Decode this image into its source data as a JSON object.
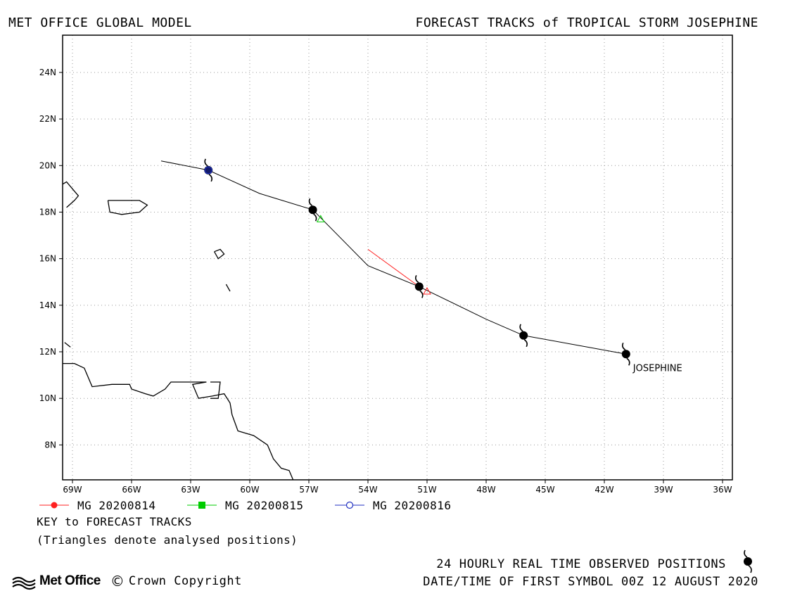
{
  "header": {
    "left_title": "MET OFFICE GLOBAL MODEL",
    "right_title": "FORECAST TRACKS of TROPICAL STORM JOSEPHINE"
  },
  "chart_data": {
    "type": "map-track",
    "x_axis": {
      "range": [
        -69.5,
        -35.5
      ],
      "ticks": [
        -69,
        -66,
        -63,
        -60,
        -57,
        -54,
        -51,
        -48,
        -45,
        -42,
        -39,
        -36
      ],
      "tick_labels": [
        "69W",
        "66W",
        "63W",
        "60W",
        "57W",
        "54W",
        "51W",
        "48W",
        "45W",
        "42W",
        "39W",
        "36W"
      ]
    },
    "y_axis": {
      "range": [
        6.5,
        25.6
      ],
      "ticks": [
        8,
        10,
        12,
        14,
        16,
        18,
        20,
        22,
        24
      ],
      "tick_labels": [
        "8N",
        "10N",
        "12N",
        "14N",
        "16N",
        "18N",
        "20N",
        "22N",
        "24N"
      ]
    },
    "grid": true,
    "storm_label": "JOSEPHINE",
    "observed_positions": [
      {
        "lon": -40.9,
        "lat": 11.9
      },
      {
        "lon": -46.1,
        "lat": 12.7
      },
      {
        "lon": -51.4,
        "lat": 14.8
      },
      {
        "lon": -56.8,
        "lat": 18.1
      },
      {
        "lon": -62.1,
        "lat": 19.8
      }
    ],
    "observed_track": [
      [
        -40.9,
        11.9
      ],
      [
        -46.1,
        12.7
      ],
      [
        -48.0,
        13.4
      ],
      [
        -51.4,
        14.8
      ],
      [
        -54.0,
        15.7
      ],
      [
        -56.8,
        18.1
      ],
      [
        -59.5,
        18.8
      ],
      [
        -62.1,
        19.8
      ],
      [
        -64.5,
        20.2
      ]
    ],
    "series": [
      {
        "name": "MG 20200814",
        "color": "#ff2020",
        "marker": "circle-filled",
        "track": [
          [
            -51.4,
            14.8
          ],
          [
            -54.0,
            16.4
          ]
        ],
        "analysed": {
          "lon": -51.0,
          "lat": 14.6
        }
      },
      {
        "name": "MG 20200815",
        "color": "#00cc00",
        "marker": "square-filled",
        "track": [],
        "analysed": {
          "lon": -56.4,
          "lat": 17.7
        }
      },
      {
        "name": "MG 20200816",
        "color": "#2030c0",
        "marker": "circle-open",
        "track": [],
        "analysed": {
          "lon": -62.1,
          "lat": 19.8
        }
      }
    ],
    "coastlines": [
      [
        [
          -69.5,
          11.5
        ],
        [
          -68.9,
          11.5
        ],
        [
          -68.4,
          11.3
        ],
        [
          -68.2,
          10.9
        ],
        [
          -68.0,
          10.5
        ],
        [
          -67.0,
          10.6
        ],
        [
          -66.1,
          10.6
        ],
        [
          -66.0,
          10.4
        ],
        [
          -65.3,
          10.2
        ],
        [
          -64.9,
          10.1
        ],
        [
          -64.3,
          10.4
        ],
        [
          -64.0,
          10.7
        ],
        [
          -62.2,
          10.7
        ],
        [
          -62.9,
          10.6
        ],
        [
          -62.6,
          10.0
        ],
        [
          -61.9,
          10.1
        ],
        [
          -61.3,
          10.2
        ],
        [
          -61.0,
          9.8
        ],
        [
          -60.9,
          9.3
        ],
        [
          -60.6,
          8.6
        ],
        [
          -59.8,
          8.4
        ],
        [
          -59.1,
          8.0
        ],
        [
          -58.8,
          7.4
        ],
        [
          -58.4,
          7.0
        ],
        [
          -58.0,
          6.9
        ],
        [
          -57.8,
          6.5
        ]
      ],
      [
        [
          -62.0,
          10.7
        ],
        [
          -61.5,
          10.7
        ],
        [
          -61.6,
          10.0
        ],
        [
          -62.0,
          10.0
        ]
      ],
      [
        [
          -69.5,
          19.2
        ],
        [
          -69.3,
          19.3
        ],
        [
          -69.0,
          19.0
        ],
        [
          -68.7,
          18.7
        ],
        [
          -68.9,
          18.5
        ],
        [
          -69.3,
          18.2
        ]
      ],
      [
        [
          -67.2,
          18.5
        ],
        [
          -65.6,
          18.5
        ],
        [
          -65.2,
          18.3
        ],
        [
          -65.6,
          18.0
        ],
        [
          -66.5,
          17.9
        ],
        [
          -67.1,
          18.0
        ],
        [
          -67.2,
          18.5
        ]
      ],
      [
        [
          -61.8,
          16.3
        ],
        [
          -61.5,
          16.4
        ],
        [
          -61.3,
          16.2
        ],
        [
          -61.6,
          16.0
        ],
        [
          -61.8,
          16.3
        ]
      ],
      [
        [
          -61.2,
          14.9
        ],
        [
          -61.0,
          14.6
        ]
      ],
      [
        [
          -69.4,
          12.4
        ],
        [
          -69.1,
          12.2
        ]
      ]
    ]
  }
}
